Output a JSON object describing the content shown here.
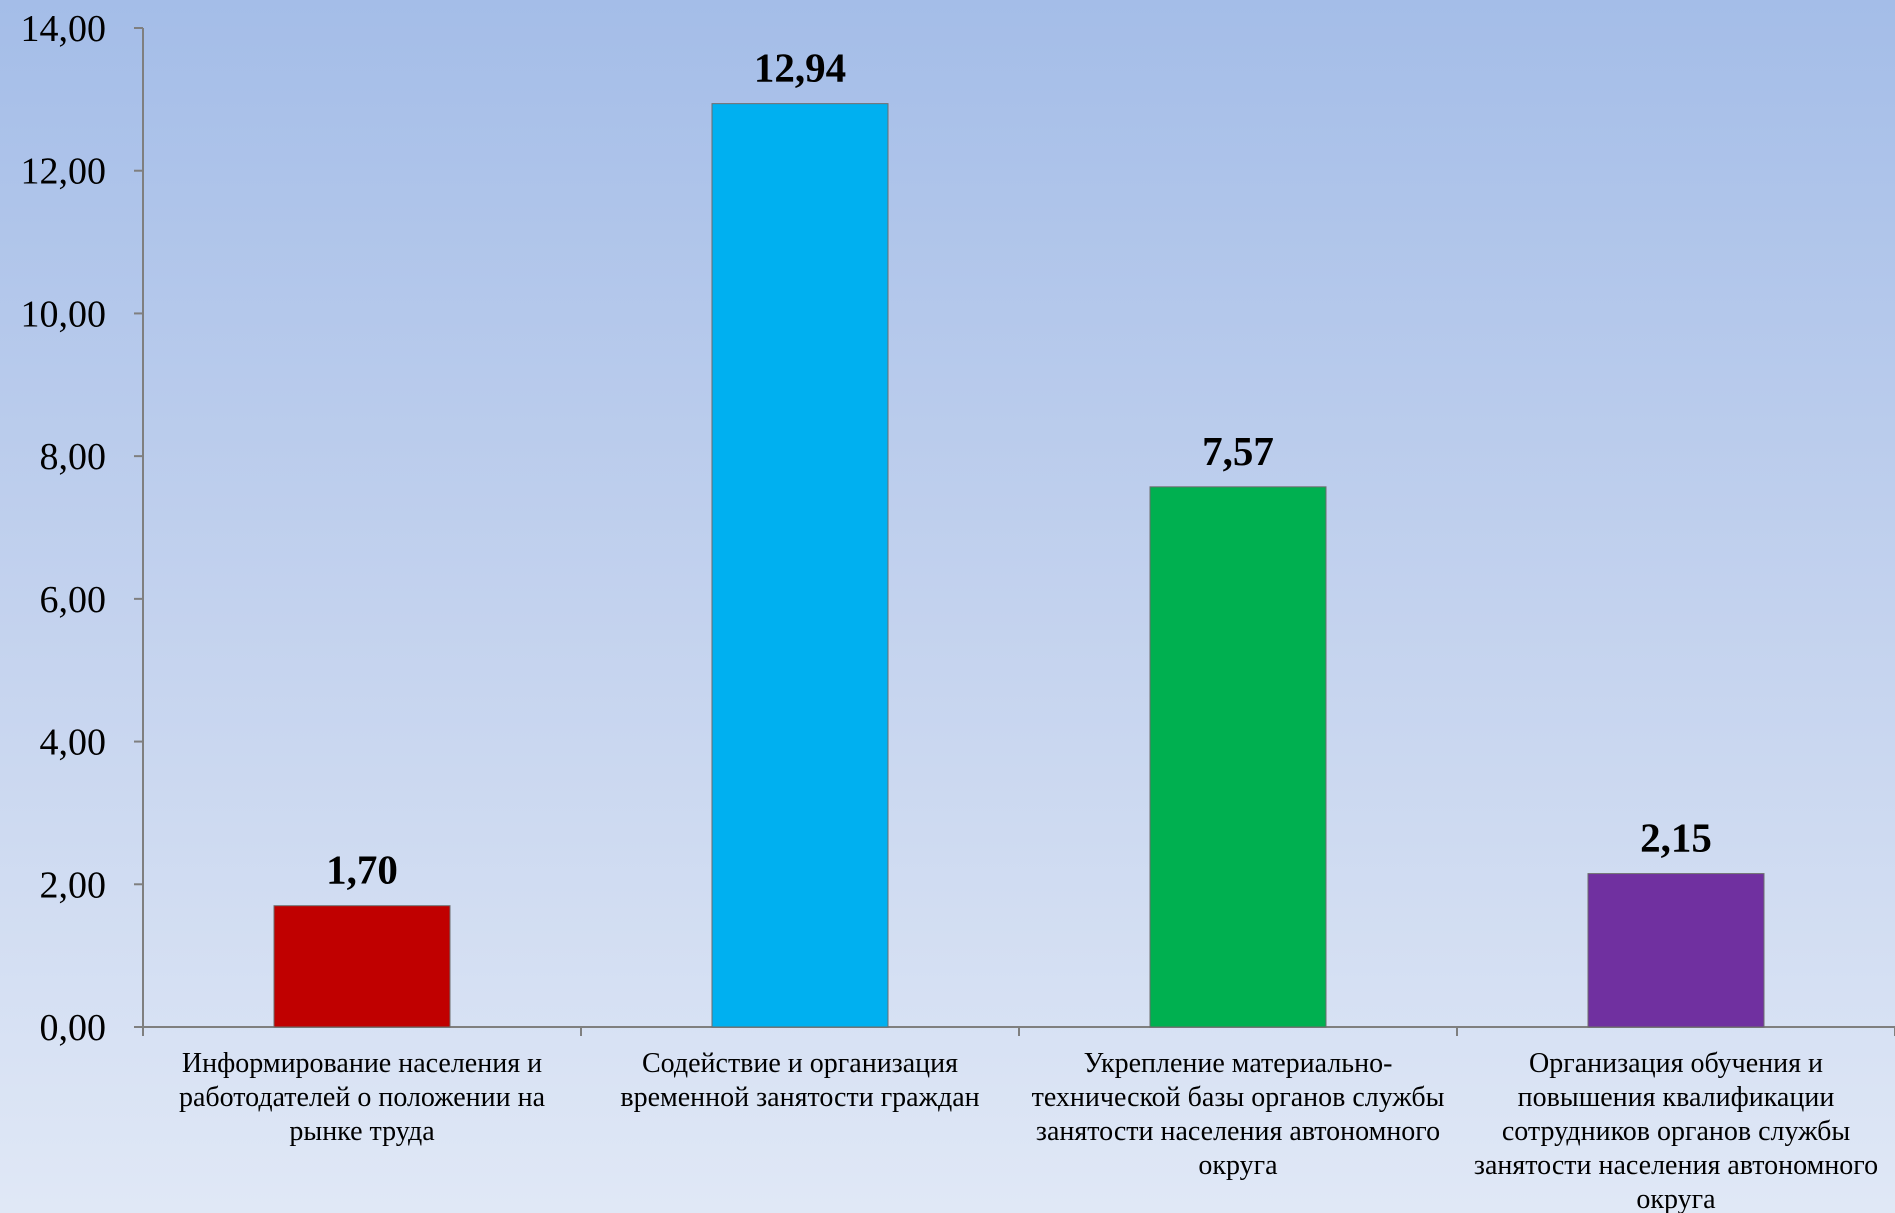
{
  "chart_data": {
    "type": "bar",
    "title": "",
    "xlabel": "",
    "ylabel": "",
    "ylim": [
      0,
      14
    ],
    "y_ticks": [
      "0,00",
      "2,00",
      "4,00",
      "6,00",
      "8,00",
      "10,00",
      "12,00",
      "14,00"
    ],
    "y_tick_values": [
      0,
      2,
      4,
      6,
      8,
      10,
      12,
      14
    ],
    "grid": false,
    "legend": "none",
    "categories": [
      [
        "Информирование населения и",
        "работодателей о положении на",
        "рынке труда"
      ],
      [
        "Содействие и организация",
        "временной занятости граждан"
      ],
      [
        "Укрепление материально-",
        "технической базы органов службы",
        "занятости населения автономного",
        "округа"
      ],
      [
        "Организация обучения и",
        "повышения квалификации",
        "сотрудников органов службы",
        "занятости населения автономного",
        "округа"
      ]
    ],
    "values": [
      1.7,
      12.94,
      7.57,
      2.15
    ],
    "value_labels": [
      "1,70",
      "12,94",
      "7,57",
      "2,15"
    ],
    "bar_colors": [
      "#c00000",
      "#00b0f0",
      "#00b050",
      "#7030a0"
    ]
  }
}
